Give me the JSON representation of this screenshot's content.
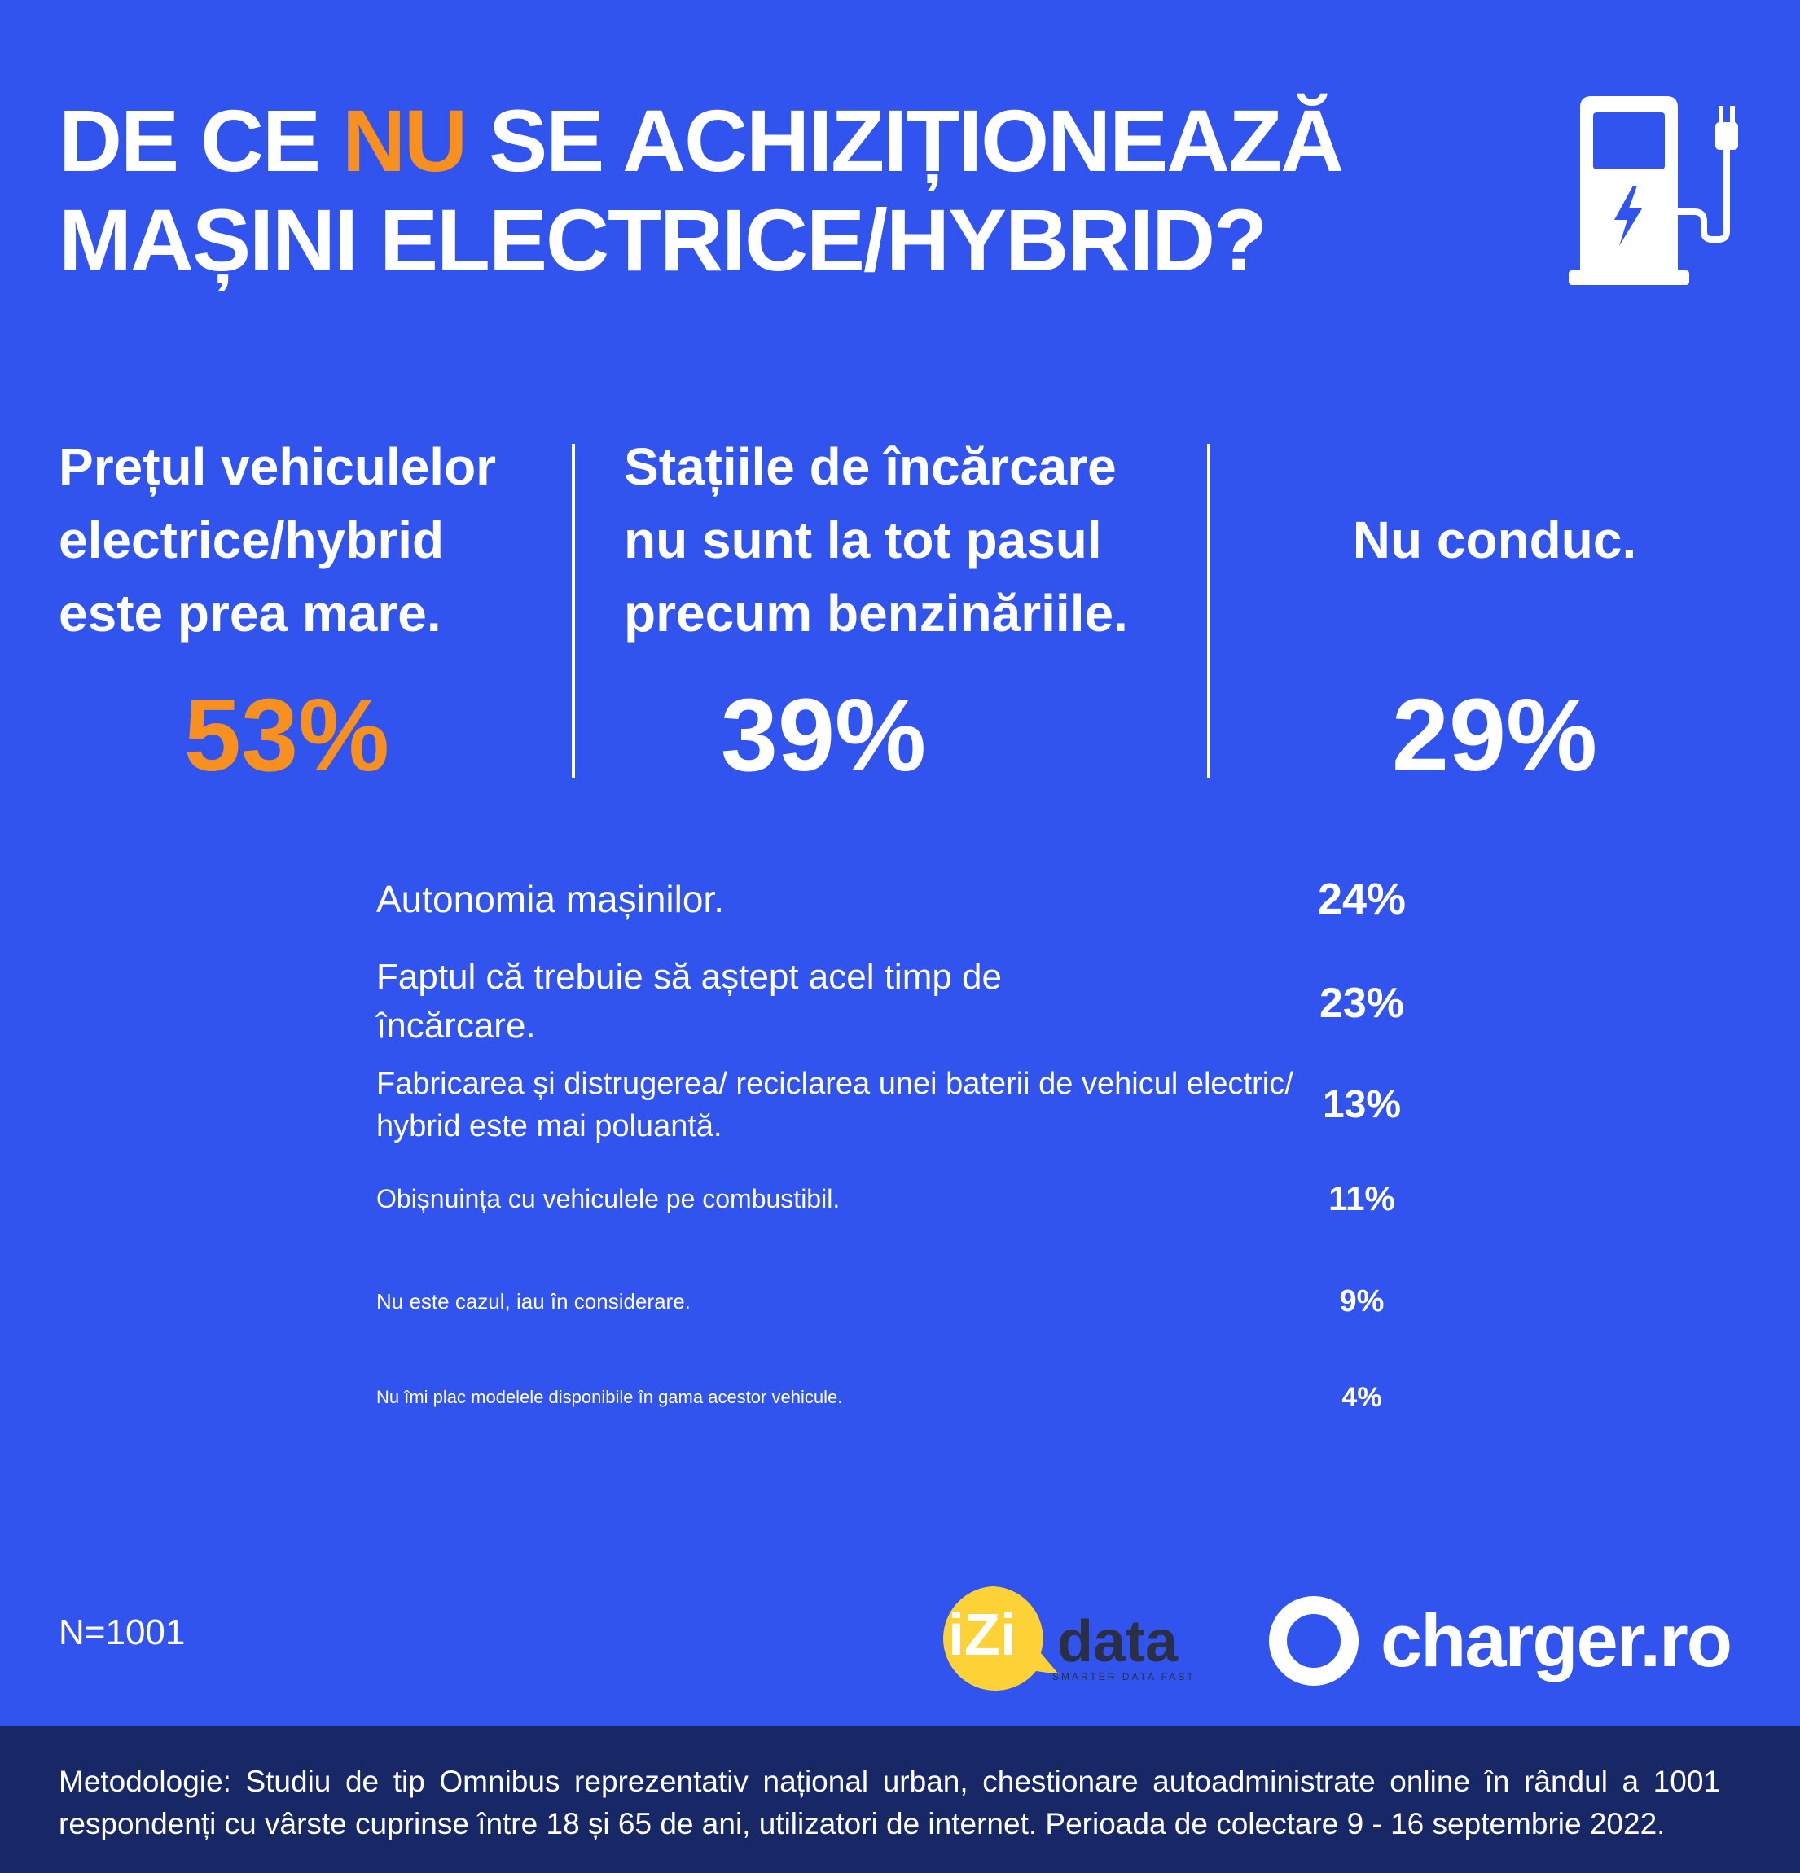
{
  "title": {
    "line1_before": "DE CE ",
    "line1_accent": "NU",
    "line1_after": " SE ACHIZIȚIONEAZĂ",
    "line2": "MAȘINI ELECTRICE/HYBRID?"
  },
  "icons": {
    "header": "ev-charging-station-icon",
    "bolt": "lightning-bolt-icon"
  },
  "colors": {
    "background": "#3154ef",
    "accent": "#f7901e",
    "footer": "#182766",
    "text": "#ffffff"
  },
  "chart_data": {
    "type": "table",
    "top_reasons": [
      {
        "label": "Prețul vehiculelor electrice/hybrid este prea mare.",
        "value": "53%",
        "highlight": true
      },
      {
        "label": "Stațiile de încărcare nu sunt la tot pasul precum benzinăriile.",
        "value": "39%",
        "highlight": false
      },
      {
        "label": "Nu conduc.",
        "value": "29%",
        "highlight": false
      }
    ],
    "other_reasons": [
      {
        "label": "Autonomia mașinilor.",
        "value": "24%"
      },
      {
        "label": "Faptul că trebuie să aștept acel timp de încărcare.",
        "value": "23%"
      },
      {
        "label": "Fabricarea și distrugerea/ reciclarea unei baterii de vehicul electric/ hybrid este mai poluantă.",
        "value": "13%"
      },
      {
        "label": "Obișnuința cu vehiculele pe combustibil.",
        "value": "11%"
      },
      {
        "label": "Nu este cazul, iau în considerare.",
        "value": "9%"
      },
      {
        "label": "Nu îmi plac modelele disponibile în gama acestor vehicule.",
        "value": "4%"
      }
    ]
  },
  "sample": "N=1001",
  "logos": {
    "izi_part1": "iZi",
    "izi_part2": "data",
    "izi_tagline": "SMARTER DATA FAST",
    "charger": "charger.ro"
  },
  "footer": "Metodologie: Studiu de tip Omnibus reprezentativ național urban, chestionare autoadministrate online în rândul a 1001 respondenți cu vârste cuprinse între 18 și 65 de ani, utilizatori de internet. Perioada de colectare 9 - 16 septembrie 2022."
}
